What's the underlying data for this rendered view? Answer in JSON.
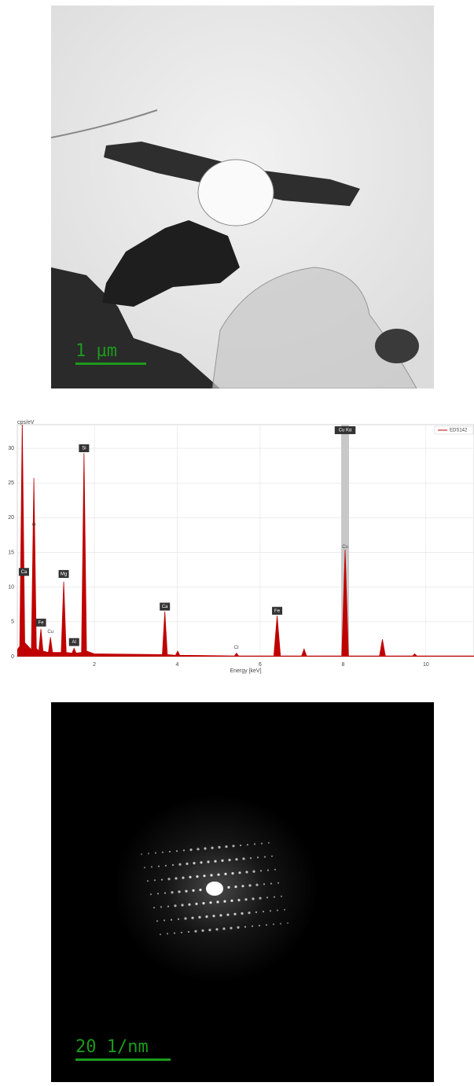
{
  "images": [
    {
      "scale_bar": "1 µm"
    },
    {
      "scale_bar": "20 1/nm"
    }
  ],
  "chart_data": {
    "type": "area",
    "y_label": "cps/eV",
    "x_label": "Energy [keV]",
    "x": [
      0.14,
      0.2,
      0.26,
      0.32,
      0.48,
      0.54,
      0.6,
      0.66,
      0.71,
      0.76,
      0.89,
      0.94,
      0.99,
      1.2,
      1.26,
      1.32,
      1.46,
      1.51,
      1.56,
      1.69,
      1.75,
      1.81,
      2.0,
      3.64,
      3.7,
      3.76,
      3.96,
      4.01,
      4.06,
      5.38,
      5.43,
      5.48,
      6.33,
      6.41,
      6.49,
      7.0,
      7.06,
      7.12,
      7.97,
      8.05,
      8.13,
      8.88,
      8.95,
      9.02,
      9.68,
      9.73,
      9.78,
      11.16
    ],
    "series": [
      {
        "name": "EDS142",
        "color": "#c00000",
        "values": [
          1.0,
          1.5,
          34,
          2.0,
          1.0,
          25.7,
          1.2,
          0.8,
          4.0,
          0.8,
          0.6,
          2.8,
          0.6,
          0.6,
          10.8,
          0.6,
          0.5,
          1.2,
          0.5,
          0.6,
          29.3,
          0.8,
          0.4,
          0.3,
          6.5,
          0.3,
          0.2,
          0.8,
          0.2,
          0.1,
          0.5,
          0.1,
          0.1,
          5.9,
          0.1,
          0.1,
          1.1,
          0.1,
          0.1,
          15.4,
          0.1,
          0.1,
          2.5,
          0.1,
          0.1,
          0.4,
          0.1,
          0.1
        ]
      }
    ],
    "annotations": [
      {
        "text": "Ca",
        "x": 0.3,
        "y": 12.2,
        "boxed": true
      },
      {
        "text": "O",
        "x": 0.54,
        "y": 19,
        "boxed": false
      },
      {
        "text": "Fe",
        "x": 0.71,
        "y": 4.9,
        "boxed": true
      },
      {
        "text": "Cu",
        "x": 0.94,
        "y": 3.6,
        "boxed": false
      },
      {
        "text": "Mg",
        "x": 1.26,
        "y": 11.9,
        "boxed": true
      },
      {
        "text": "Al",
        "x": 1.51,
        "y": 2.1,
        "boxed": true
      },
      {
        "text": "Si",
        "x": 1.75,
        "y": 30,
        "boxed": true
      },
      {
        "text": "Ca",
        "x": 3.7,
        "y": 7.2,
        "boxed": true
      },
      {
        "text": "Cr",
        "x": 5.43,
        "y": 1.3,
        "boxed": false
      },
      {
        "text": "Fe",
        "x": 6.41,
        "y": 6.6,
        "boxed": true
      },
      {
        "text": "Cu",
        "x": 8.05,
        "y": 15.8,
        "boxed": false
      },
      {
        "text": "Cu Kα",
        "x": 8.05,
        "y": 32.6,
        "boxed": true,
        "highlight": true
      }
    ],
    "xlim": [
      0.14,
      11.16
    ],
    "ylim": [
      0,
      33.4
    ],
    "xticks": [
      2,
      4,
      6,
      8,
      10
    ],
    "yticks": [
      0,
      5,
      10,
      15,
      20,
      25,
      30
    ],
    "grid": true,
    "legend": "top-right"
  }
}
